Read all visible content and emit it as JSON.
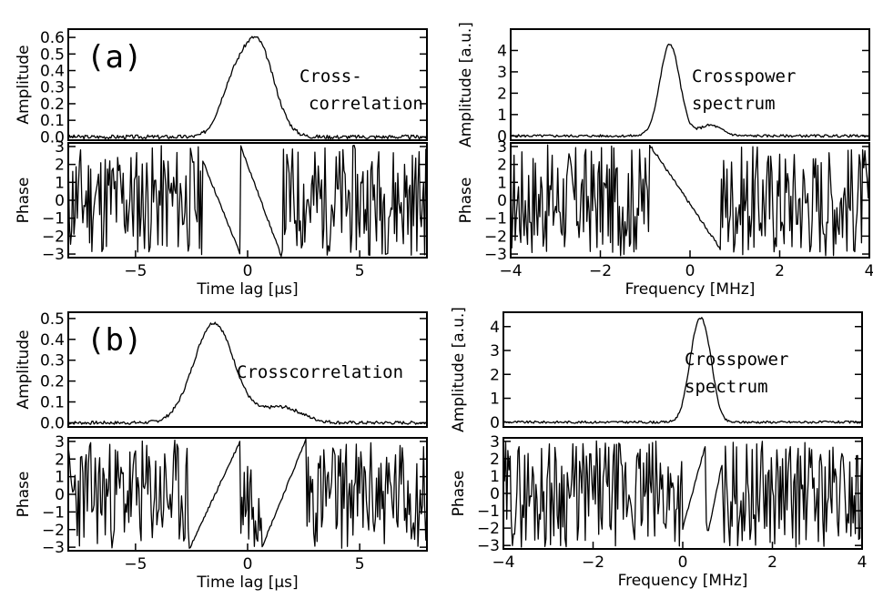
{
  "chart_data": [
    {
      "id": "a-amp",
      "panel": "(a)",
      "type": "line",
      "ylabel": "Amplitude",
      "annotation": [
        "Cross-",
        "correlation"
      ],
      "xlim": [
        -8,
        8
      ],
      "ylim": [
        -0.02,
        0.65
      ],
      "yticks": [
        "0.0",
        "0.1",
        "0.2",
        "0.3",
        "0.4",
        "0.5",
        "0.6"
      ],
      "ytick_values": [
        0,
        0.1,
        0.2,
        0.3,
        0.4,
        0.5,
        0.6
      ],
      "curve": {
        "kind": "peak",
        "bumps": [
          [
            0.4,
            0.58,
            0.75
          ],
          [
            -0.8,
            0.2,
            0.55
          ]
        ],
        "noise": 0.012,
        "seed": 3
      },
      "peak": {
        "x": 0.4,
        "y": 0.61
      }
    },
    {
      "id": "a-phase",
      "type": "line",
      "ylabel": "Phase",
      "xlabel": "Time lag [μs]",
      "xlim": [
        -8,
        8
      ],
      "ylim": [
        -3.2,
        3.2
      ],
      "yticks": [
        "−3",
        "−2",
        "−1",
        "0",
        "1",
        "2",
        "3"
      ],
      "ytick_values": [
        -3,
        -2,
        -1,
        0,
        1,
        2,
        3
      ],
      "xticks": [
        "−5",
        "0",
        "5"
      ],
      "xtick_values": [
        -5,
        0,
        5
      ],
      "curve": {
        "kind": "phase",
        "ranges": [
          [
            -2,
            -0.3,
            2.2,
            -3.1
          ],
          [
            -0.3,
            1.5,
            3.0,
            -3.1
          ]
        ],
        "seed": 11
      }
    },
    {
      "id": "a-spec",
      "type": "line",
      "ylabel": "Amplitude [a.u.]",
      "annotation": [
        "Crosspower",
        "spectrum"
      ],
      "xlim": [
        -4,
        4
      ],
      "ylim": [
        -0.2,
        5.0
      ],
      "yticks": [
        "0",
        "1",
        "2",
        "3",
        "4"
      ],
      "ytick_values": [
        0,
        1,
        2,
        3,
        4
      ],
      "curve": {
        "kind": "peak",
        "bumps": [
          [
            -0.45,
            4.3,
            0.22
          ],
          [
            0.45,
            0.5,
            0.25
          ]
        ],
        "noise": 0.06,
        "seed": 5
      },
      "peak": {
        "x": -0.45,
        "y": 4.7
      }
    },
    {
      "id": "a-sphase",
      "type": "line",
      "ylabel": "Phase",
      "xlabel": "Frequency [MHz]",
      "xlim": [
        -4,
        4
      ],
      "ylim": [
        -3.2,
        3.2
      ],
      "yticks": [
        "−3",
        "−2",
        "−1",
        "0",
        "1",
        "2",
        "3"
      ],
      "ytick_values": [
        -3,
        -2,
        -1,
        0,
        1,
        2,
        3
      ],
      "xticks": [
        "−4",
        "−2",
        "0",
        "2",
        "4"
      ],
      "xtick_values": [
        -4,
        -2,
        0,
        2,
        4
      ],
      "curve": {
        "kind": "phase",
        "ranges": [
          [
            -0.9,
            0.7,
            3.1,
            -2.8
          ]
        ],
        "seed": 17
      }
    },
    {
      "id": "b-amp",
      "panel": "(b)",
      "type": "line",
      "ylabel": "Amplitude",
      "annotation": [
        "Crosscorrelation"
      ],
      "xlim": [
        -8,
        8
      ],
      "ylim": [
        -0.02,
        0.53
      ],
      "yticks": [
        "0.0",
        "0.1",
        "0.2",
        "0.3",
        "0.4",
        "0.5"
      ],
      "ytick_values": [
        0,
        0.1,
        0.2,
        0.3,
        0.4,
        0.5
      ],
      "curve": {
        "kind": "peak",
        "bumps": [
          [
            -1.5,
            0.48,
            0.9
          ],
          [
            1.5,
            0.075,
            0.9
          ]
        ],
        "noise": 0.008,
        "seed": 7
      },
      "peak": {
        "x": -1.5,
        "y": 0.49
      }
    },
    {
      "id": "b-phase",
      "type": "line",
      "ylabel": "Phase",
      "xlabel": "Time lag [μs]",
      "xlim": [
        -8,
        8
      ],
      "ylim": [
        -3.2,
        3.2
      ],
      "yticks": [
        "−3",
        "−2",
        "−1",
        "0",
        "1",
        "2",
        "3"
      ],
      "ytick_values": [
        -3,
        -2,
        -1,
        0,
        1,
        2,
        3
      ],
      "xticks": [
        "−5",
        "0",
        "5"
      ],
      "xtick_values": [
        -5,
        0,
        5
      ],
      "curve": {
        "kind": "phase",
        "ranges": [
          [
            -2.6,
            -0.3,
            -3.1,
            3.1
          ],
          [
            0.6,
            2.6,
            -3.1,
            3.1
          ]
        ],
        "seed": 23
      }
    },
    {
      "id": "b-spec",
      "type": "line",
      "ylabel": "Amplitude [a.u.]",
      "annotation": [
        "Crosspower",
        "spectrum"
      ],
      "xlim": [
        -4,
        4
      ],
      "ylim": [
        -0.2,
        4.6
      ],
      "yticks": [
        "0",
        "1",
        "2",
        "3",
        "4"
      ],
      "ytick_values": [
        0,
        1,
        2,
        3,
        4
      ],
      "curve": {
        "kind": "peak",
        "bumps": [
          [
            0.35,
            4.0,
            0.2
          ],
          [
            0.6,
            1.2,
            0.15
          ]
        ],
        "noise": 0.05,
        "seed": 9
      },
      "peak": {
        "x": 0.3,
        "y": 4.35
      }
    },
    {
      "id": "b-sphase",
      "type": "line",
      "ylabel": "Phase",
      "xlabel": "Frequency [MHz]",
      "xlim": [
        -4,
        4
      ],
      "ylim": [
        -3.2,
        3.2
      ],
      "yticks": [
        "−3",
        "−2",
        "−1",
        "0",
        "1",
        "2",
        "3"
      ],
      "ytick_values": [
        -3,
        -2,
        -1,
        0,
        1,
        2,
        3
      ],
      "xticks": [
        "−4",
        "−2",
        "0",
        "2",
        "4"
      ],
      "xtick_values": [
        -4,
        -2,
        0,
        2,
        4
      ],
      "curve": {
        "kind": "phase",
        "ranges": [
          [
            0.0,
            0.5,
            -2.0,
            2.7
          ],
          [
            0.55,
            0.9,
            -2.5,
            2.0
          ]
        ],
        "seed": 29
      }
    }
  ]
}
